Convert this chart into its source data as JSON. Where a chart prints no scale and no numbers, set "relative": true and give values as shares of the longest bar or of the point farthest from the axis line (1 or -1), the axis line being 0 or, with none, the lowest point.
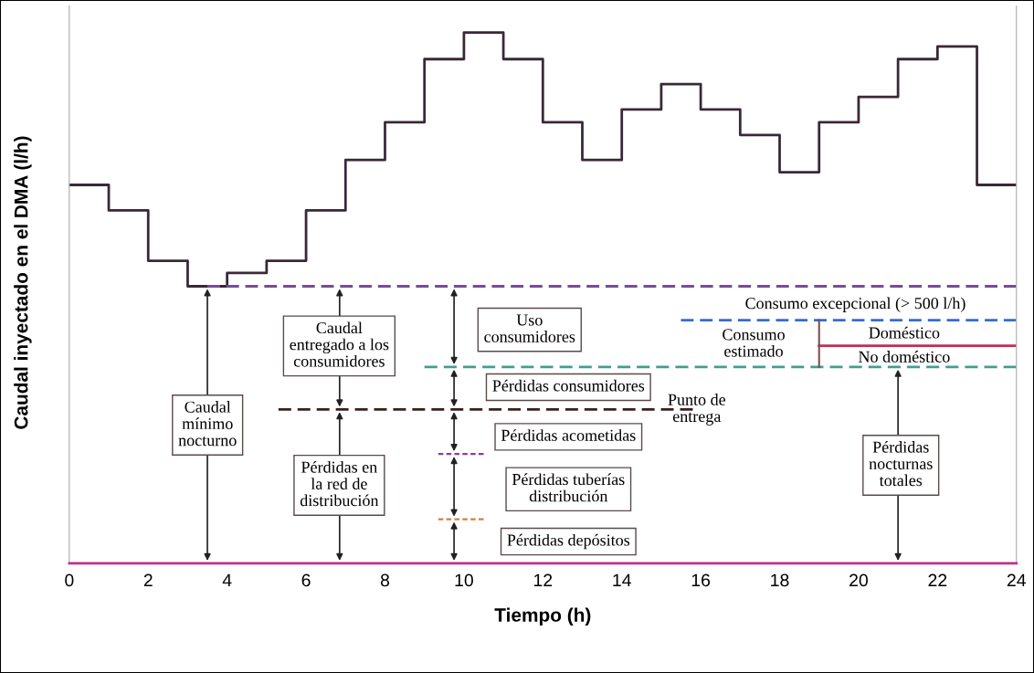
{
  "chart_data": {
    "type": "step",
    "relative": true,
    "xlabel": "Tiempo (h)",
    "ylabel": "Caudal inyectado en el DMA (l/h)",
    "xlim": [
      0,
      24
    ],
    "xticks": [
      0,
      2,
      4,
      6,
      8,
      10,
      12,
      14,
      16,
      18,
      20,
      22,
      24
    ],
    "grid": false,
    "series": [
      {
        "color": "#3a2838",
        "line_style": "solid",
        "x": [
          0,
          1,
          2,
          3,
          4,
          5,
          6,
          7,
          8,
          9,
          10,
          11,
          12,
          13,
          14,
          15,
          16,
          17,
          18,
          19,
          20,
          21,
          22,
          23,
          24
        ],
        "values": [
          0.713,
          0.665,
          0.57,
          0.522,
          0.547,
          0.57,
          0.665,
          0.76,
          0.831,
          0.95,
          1.0,
          0.95,
          0.831,
          0.76,
          0.855,
          0.903,
          0.855,
          0.807,
          0.737,
          0.831,
          0.879,
          0.95,
          0.974,
          0.713,
          0.713
        ]
      },
      {
        "type": "line",
        "color": "#7a4a9a",
        "line_style": "dashed",
        "x": [
          3.5,
          24
        ],
        "values": [
          0.522,
          0.522
        ]
      },
      {
        "type": "line",
        "color": "#3a6ad0",
        "line_style": "dashed",
        "x": [
          15.5,
          24
        ],
        "values": [
          0.458,
          0.458
        ]
      },
      {
        "type": "line",
        "color": "#40a090",
        "line_style": "dashed",
        "x": [
          9.0,
          24
        ],
        "values": [
          0.37,
          0.37
        ]
      },
      {
        "type": "line",
        "color": "#3a2020",
        "line_style": "dashed",
        "x": [
          5.3,
          15.8
        ],
        "values": [
          0.29,
          0.29
        ]
      },
      {
        "type": "line",
        "color": "#8a3ab0",
        "line_style": "dashed",
        "x": [
          9.35,
          10.5
        ],
        "values": [
          0.206,
          0.206
        ]
      },
      {
        "type": "line",
        "color": "#d08040",
        "line_style": "dashed",
        "x": [
          9.35,
          10.5
        ],
        "values": [
          0.083,
          0.083
        ]
      },
      {
        "type": "line",
        "color": "#c03050",
        "line_style": "solid",
        "x": [
          19,
          24
        ],
        "values": [
          0.41,
          0.41
        ]
      },
      {
        "type": "line",
        "color": "#7a5050",
        "line_style": "solid",
        "x": [
          19,
          19
        ],
        "values": [
          0.458,
          0.37
        ]
      }
    ],
    "annotations": [
      "Caudal\nmínimo\nnocturno",
      "Caudal\nentregado a los\nconsumidores",
      "Pérdidas en\nla red de\ndistribución",
      "Uso\nconsumidores",
      "Pérdidas consumidores",
      "Pérdidas acometidas",
      "Pérdidas tuberías\ndistribución",
      "Pérdidas depósitos",
      "Punto de\nentrega",
      "Consumo excepcional (> 500 l/h)",
      "Consumo\nestimado",
      "Doméstico",
      "No doméstico",
      "Pérdidas\nnocturnas\ntotales"
    ]
  }
}
